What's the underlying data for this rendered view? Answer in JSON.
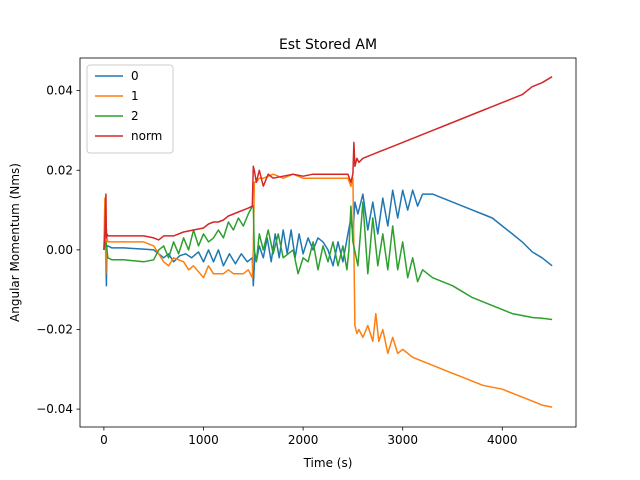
{
  "chart_data": {
    "type": "line",
    "title": "Est Stored AM",
    "xlabel": "Time (s)",
    "ylabel": "Angular Momentum (Nms)",
    "xlim": [
      -240,
      4740
    ],
    "ylim": [
      -0.0445,
      0.0482
    ],
    "xticks": [
      0,
      1000,
      2000,
      3000,
      4000
    ],
    "xtick_labels": [
      "0",
      "1000",
      "2000",
      "3000",
      "4000"
    ],
    "yticks": [
      -0.04,
      -0.02,
      0.0,
      0.02,
      0.04
    ],
    "ytick_labels": [
      "−0.04",
      "−0.02",
      "0.00",
      "0.02",
      "0.04"
    ],
    "grid": false,
    "legend_position": "top-left",
    "series": [
      {
        "name": "0",
        "color": "#1f77b4",
        "x": [
          0,
          15,
          25,
          30,
          40,
          80,
          200,
          400,
          500,
          550,
          600,
          650,
          700,
          760,
          820,
          880,
          950,
          1000,
          1050,
          1100,
          1150,
          1200,
          1260,
          1320,
          1380,
          1440,
          1490,
          1500,
          1510,
          1515,
          1530,
          1560,
          1600,
          1640,
          1680,
          1720,
          1760,
          1800,
          1840,
          1880,
          1920,
          1960,
          2000,
          2050,
          2100,
          2150,
          2200,
          2250,
          2300,
          2350,
          2400,
          2450,
          2480,
          2500,
          2520,
          2550,
          2600,
          2650,
          2700,
          2750,
          2800,
          2850,
          2900,
          2950,
          3000,
          3050,
          3100,
          3150,
          3200,
          3300,
          3400,
          3500,
          3600,
          3700,
          3800,
          3900,
          4000,
          4100,
          4200,
          4300,
          4400,
          4500
        ],
        "y": [
          0.0,
          0.005,
          -0.009,
          0.001,
          0.001,
          0.0005,
          0.0005,
          0.0002,
          0.0,
          -0.001,
          -0.002,
          -0.001,
          -0.003,
          -0.0015,
          -0.001,
          -0.002,
          -0.0005,
          -0.003,
          0.0,
          -0.003,
          0.0,
          -0.004,
          -0.001,
          -0.0035,
          -0.001,
          -0.003,
          -0.002,
          -0.009,
          -0.004,
          -0.001,
          -0.003,
          0.001,
          -0.002,
          0.003,
          -0.003,
          0.004,
          -0.002,
          0.005,
          -0.001,
          0.005,
          -0.002,
          0.004,
          -0.001,
          0.003,
          0.0,
          0.003,
          0.002,
          0.0,
          -0.004,
          0.002,
          -0.003,
          0.004,
          0.008,
          0.004,
          0.012,
          0.009,
          0.014,
          0.005,
          0.012,
          0.004,
          0.013,
          0.006,
          0.015,
          0.008,
          0.015,
          0.01,
          0.015,
          0.011,
          0.014,
          0.014,
          0.013,
          0.012,
          0.011,
          0.01,
          0.009,
          0.008,
          0.006,
          0.004,
          0.002,
          -0.0005,
          -0.002,
          -0.004
        ]
      },
      {
        "name": "1",
        "color": "#ff7f0e",
        "x": [
          0,
          10,
          20,
          25,
          30,
          40,
          80,
          200,
          400,
          450,
          500,
          600,
          650,
          700,
          800,
          850,
          900,
          1000,
          1050,
          1100,
          1200,
          1250,
          1300,
          1400,
          1450,
          1490,
          1500,
          1510,
          1530,
          1560,
          1600,
          1700,
          1800,
          1900,
          2000,
          2100,
          2200,
          2300,
          2400,
          2450,
          2480,
          2500,
          2510,
          2520,
          2530,
          2540,
          2560,
          2600,
          2650,
          2700,
          2730,
          2760,
          2800,
          2850,
          2900,
          2950,
          3000,
          3100,
          3200,
          3300,
          3400,
          3500,
          3600,
          3700,
          3800,
          3900,
          4000,
          4100,
          4200,
          4300,
          4400,
          4500
        ],
        "y": [
          0.0,
          0.013,
          -0.006,
          0.005,
          0.003,
          0.002,
          0.002,
          0.002,
          0.002,
          0.0015,
          0.001,
          -0.003,
          -0.004,
          -0.002,
          -0.003,
          -0.005,
          -0.004,
          -0.007,
          -0.004,
          -0.006,
          -0.006,
          -0.005,
          -0.006,
          -0.006,
          -0.005,
          -0.007,
          0.0,
          0.017,
          0.017,
          0.018,
          0.018,
          0.019,
          0.018,
          0.019,
          0.018,
          0.018,
          0.018,
          0.018,
          0.018,
          0.018,
          0.016,
          0.018,
          0.0,
          -0.019,
          -0.02,
          -0.021,
          -0.02,
          -0.022,
          -0.019,
          -0.023,
          -0.016,
          -0.023,
          -0.02,
          -0.026,
          -0.022,
          -0.026,
          -0.025,
          -0.027,
          -0.028,
          -0.029,
          -0.03,
          -0.031,
          -0.032,
          -0.033,
          -0.034,
          -0.0345,
          -0.035,
          -0.036,
          -0.037,
          -0.038,
          -0.039,
          -0.0395
        ]
      },
      {
        "name": "2",
        "color": "#2ca02c",
        "x": [
          0,
          20,
          40,
          80,
          200,
          400,
          500,
          550,
          600,
          650,
          700,
          750,
          800,
          850,
          900,
          950,
          1000,
          1050,
          1100,
          1150,
          1200,
          1250,
          1300,
          1350,
          1400,
          1450,
          1490,
          1500,
          1510,
          1530,
          1560,
          1600,
          1650,
          1700,
          1750,
          1800,
          1850,
          1900,
          1950,
          2000,
          2050,
          2100,
          2150,
          2200,
          2250,
          2300,
          2350,
          2400,
          2440,
          2460,
          2480,
          2500,
          2550,
          2600,
          2650,
          2700,
          2750,
          2800,
          2850,
          2900,
          2950,
          3000,
          3050,
          3100,
          3150,
          3200,
          3300,
          3400,
          3500,
          3600,
          3700,
          3800,
          3900,
          4000,
          4100,
          4200,
          4300,
          4400,
          4500
        ],
        "y": [
          0.0,
          0.002,
          -0.002,
          -0.0025,
          -0.0025,
          -0.003,
          -0.0025,
          0.0,
          0.001,
          -0.002,
          0.002,
          -0.001,
          0.003,
          0.0,
          0.005,
          0.001,
          0.004,
          0.002,
          0.003,
          0.005,
          0.003,
          0.007,
          0.005,
          0.008,
          0.006,
          0.009,
          0.011,
          0.011,
          0.0,
          -0.003,
          0.004,
          0.0,
          0.005,
          -0.001,
          0.004,
          -0.002,
          -0.001,
          0.0,
          -0.006,
          -0.002,
          -0.003,
          0.002,
          -0.005,
          0.001,
          -0.003,
          0.002,
          -0.004,
          0.001,
          -0.005,
          0.0,
          0.011,
          0.002,
          -0.004,
          0.012,
          -0.006,
          0.008,
          -0.004,
          0.004,
          -0.005,
          0.006,
          -0.005,
          0.002,
          -0.007,
          -0.002,
          -0.008,
          -0.005,
          -0.007,
          -0.008,
          -0.009,
          -0.0105,
          -0.012,
          -0.013,
          -0.014,
          -0.015,
          -0.016,
          -0.0165,
          -0.017,
          -0.0172,
          -0.0175
        ]
      },
      {
        "name": "norm",
        "color": "#d62728",
        "x": [
          0,
          10,
          20,
          25,
          30,
          40,
          80,
          200,
          400,
          500,
          550,
          600,
          700,
          800,
          900,
          1000,
          1050,
          1100,
          1150,
          1200,
          1250,
          1300,
          1350,
          1400,
          1450,
          1490,
          1500,
          1510,
          1530,
          1560,
          1600,
          1650,
          1700,
          1800,
          1900,
          2000,
          2100,
          2200,
          2300,
          2400,
          2450,
          2480,
          2500,
          2510,
          2520,
          2540,
          2560,
          2600,
          2700,
          2800,
          2900,
          3000,
          3100,
          3200,
          3300,
          3400,
          3500,
          3600,
          3700,
          3800,
          3900,
          4000,
          4100,
          4200,
          4300,
          4400,
          4500
        ],
        "y": [
          0.0,
          0.004,
          0.014,
          0.003,
          0.004,
          0.0035,
          0.0035,
          0.0035,
          0.0035,
          0.003,
          0.0025,
          0.0035,
          0.0035,
          0.0045,
          0.005,
          0.0055,
          0.0065,
          0.007,
          0.007,
          0.0075,
          0.0085,
          0.009,
          0.0095,
          0.01,
          0.0105,
          0.011,
          0.021,
          0.02,
          0.017,
          0.02,
          0.016,
          0.019,
          0.018,
          0.0185,
          0.019,
          0.0185,
          0.019,
          0.019,
          0.019,
          0.019,
          0.019,
          0.017,
          0.019,
          0.027,
          0.021,
          0.023,
          0.022,
          0.023,
          0.024,
          0.025,
          0.026,
          0.027,
          0.028,
          0.029,
          0.03,
          0.031,
          0.032,
          0.033,
          0.034,
          0.035,
          0.036,
          0.037,
          0.038,
          0.039,
          0.041,
          0.042,
          0.0435
        ]
      }
    ]
  }
}
